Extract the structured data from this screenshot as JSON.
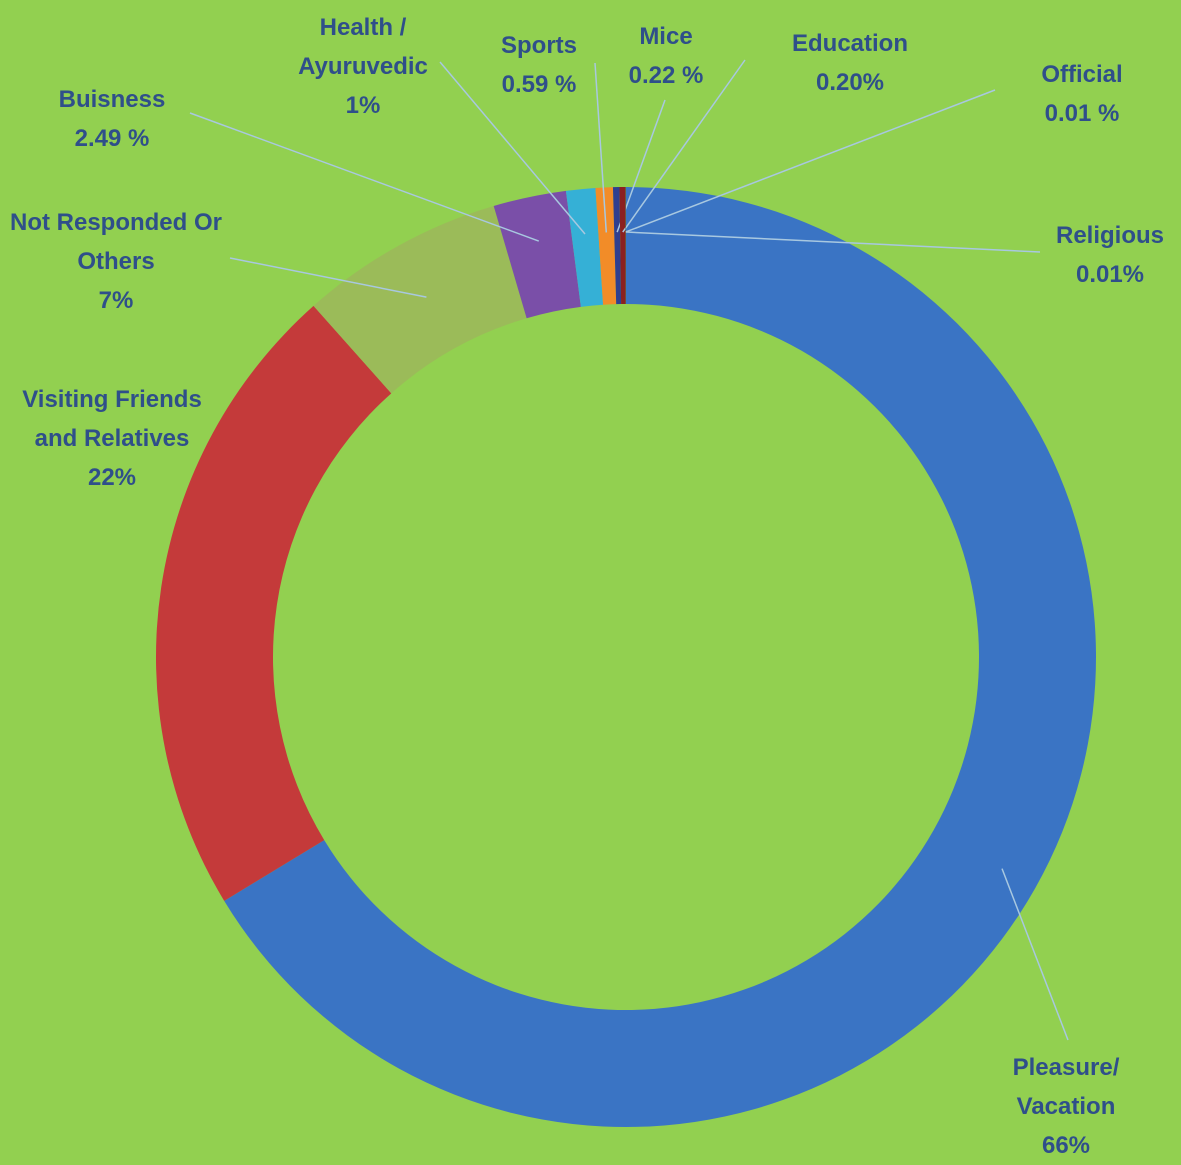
{
  "chart_data": {
    "type": "donut",
    "categories": [
      "Pleasure/ Vacation",
      "Visiting Friends and Relatives",
      "Not Responded Or Others",
      "Buisness",
      "Health / Ayuruvedic",
      "Sports",
      "Mice",
      "Education",
      "Official",
      "Religious"
    ],
    "values": [
      66,
      22,
      7,
      2.49,
      1,
      0.59,
      0.22,
      0.2,
      0.01,
      0.01
    ],
    "value_labels": [
      "66%",
      "22%",
      "7%",
      "2.49 %",
      "1%",
      "0.59 %",
      "0.22 %",
      "0.20%",
      "0.01 %",
      "0.01%"
    ],
    "colors": [
      "#3a74c4",
      "#c43a3a",
      "#9bbb59",
      "#7a4fa8",
      "#35b0d6",
      "#f28c28",
      "#2f3f8f",
      "#8b2020",
      "#5b3a8a",
      "#3a6f2a"
    ]
  }
}
